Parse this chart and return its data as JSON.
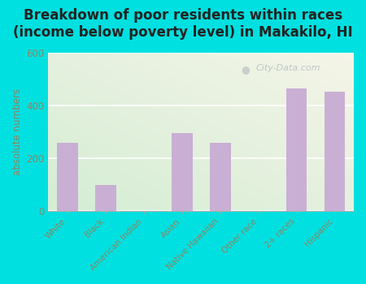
{
  "title": "Breakdown of poor residents within races\n(income below poverty level) in Makakilo, HI",
  "categories": [
    "White",
    "Black",
    "American Indian",
    "Asian",
    "Native Hawaiian",
    "Other race",
    "2+ races",
    "Hispanic"
  ],
  "values": [
    260,
    100,
    0,
    295,
    260,
    0,
    465,
    455
  ],
  "bar_color": "#c9afd4",
  "ylabel": "absolute numbers",
  "ylim": [
    0,
    600
  ],
  "yticks": [
    0,
    200,
    400,
    600
  ],
  "bg_outer": "#00e0e0",
  "bg_grad_top_left": "#d4edd4",
  "bg_grad_bottom_right": "#f0f0e8",
  "title_fontsize": 12,
  "title_color": "#222222",
  "tick_color": "#888866",
  "watermark": "City-Data.com"
}
